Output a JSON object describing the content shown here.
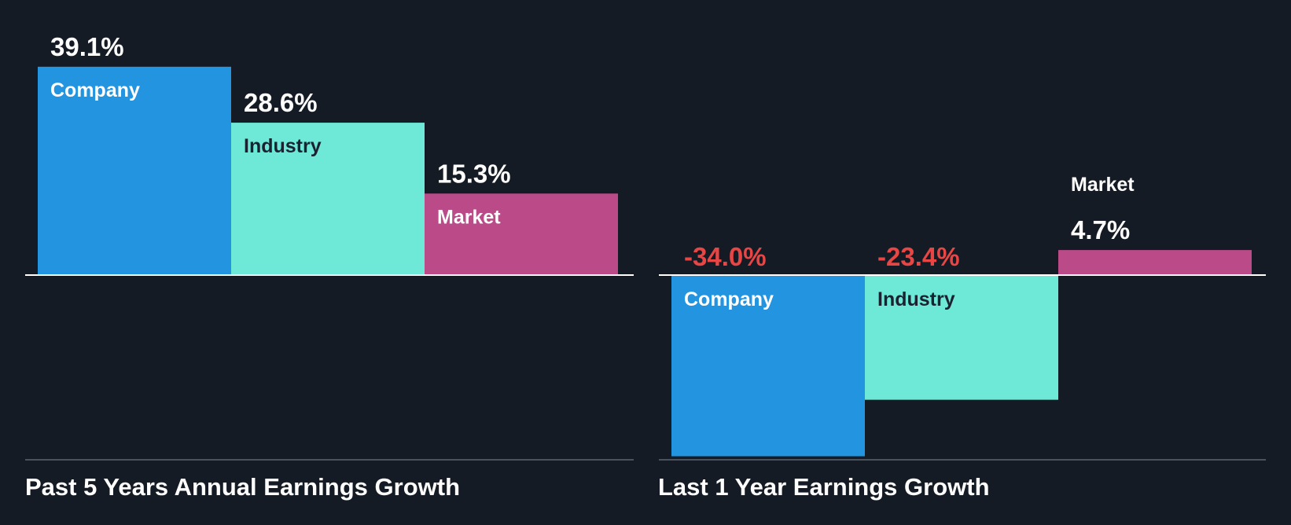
{
  "colors": {
    "background": "#151b24",
    "company": "#2394e0",
    "industry": "#6ee8d7",
    "market": "#ba4a88",
    "positive_value": "#ffffff",
    "negative_value": "#e84645",
    "dark_label": "#1a2230"
  },
  "chart_data": [
    {
      "type": "bar",
      "title": "Past 5 Years Annual Earnings Growth",
      "categories": [
        "Company",
        "Industry",
        "Market"
      ],
      "values": [
        39.1,
        28.6,
        15.3
      ],
      "value_labels": [
        "39.1%",
        "28.6%",
        "15.3%"
      ],
      "unit": "%",
      "ylim": [
        -35,
        39.1
      ],
      "grid": false,
      "legend": "none"
    },
    {
      "type": "bar",
      "title": "Last 1 Year Earnings Growth",
      "categories": [
        "Company",
        "Industry",
        "Market"
      ],
      "values": [
        -34.0,
        -23.4,
        4.7
      ],
      "value_labels": [
        "-34.0%",
        "-23.4%",
        "4.7%"
      ],
      "unit": "%",
      "ylim": [
        -34.0,
        4.7
      ],
      "grid": false,
      "legend": "none"
    }
  ]
}
